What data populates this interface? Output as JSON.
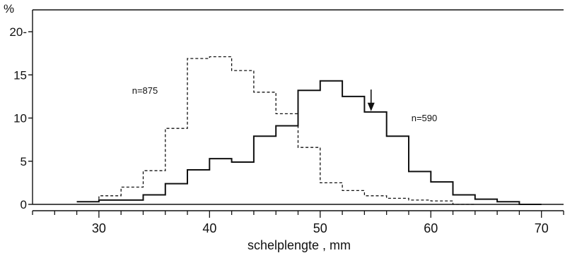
{
  "chart_data": {
    "type": "step",
    "title": "",
    "ylabel": "%",
    "xlabel": "schelplengte , mm",
    "xlim": [
      24,
      72
    ],
    "ylim": [
      0,
      20
    ],
    "x_ticks": [
      30,
      40,
      50,
      60,
      70
    ],
    "y_ticks": [
      0,
      5,
      10,
      15,
      20
    ],
    "y_tick_labels": [
      "0",
      "5",
      "10",
      "15",
      "20-"
    ],
    "bin_width": 2,
    "series": [
      {
        "name": "n=875",
        "line_style": "dashed",
        "bin_starts": [
          28,
          30,
          32,
          34,
          36,
          38,
          40,
          42,
          44,
          46,
          48,
          50,
          52,
          54,
          56,
          58,
          60,
          62
        ],
        "values": [
          0.3,
          1.0,
          2.0,
          3.9,
          8.8,
          16.9,
          17.1,
          15.5,
          13.0,
          10.5,
          6.6,
          2.5,
          1.6,
          1.0,
          0.7,
          0.5,
          0.4,
          0.0
        ]
      },
      {
        "name": "n=590",
        "line_style": "solid",
        "bin_starts": [
          28,
          30,
          32,
          34,
          36,
          38,
          40,
          42,
          44,
          46,
          48,
          50,
          52,
          54,
          56,
          58,
          60,
          62,
          64,
          66,
          68
        ],
        "values": [
          0.3,
          0.5,
          0.5,
          1.1,
          2.4,
          4.0,
          5.3,
          4.9,
          7.9,
          9.1,
          13.2,
          14.3,
          12.5,
          10.7,
          7.9,
          3.8,
          2.6,
          1.1,
          0.6,
          0.3,
          0.0
        ]
      }
    ],
    "annotations": [
      {
        "type": "arrow",
        "label": "",
        "x": 54.6,
        "y_from": 13.3,
        "y_to": 10.8
      }
    ]
  }
}
